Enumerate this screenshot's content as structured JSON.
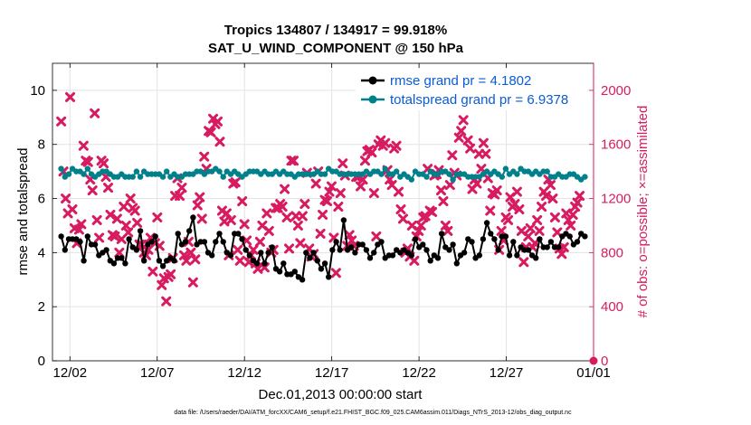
{
  "chart_data": {
    "type": "line",
    "title": "Tropics 134807 / 134917 = 99.918%",
    "subtitle": "SAT_U_WIND_COMPONENT @ 150 hPa",
    "xlabel": "Dec.01,2013 00:00:00 start",
    "ylabel": "rmse and totalspread",
    "ylabel_right": "# of obs: o=possible; ×=assimilated",
    "x_tick_labels": [
      "12/02",
      "12/07",
      "12/12",
      "12/17",
      "12/22",
      "12/27",
      "01/01"
    ],
    "x_tick_days": [
      1,
      6,
      11,
      16,
      21,
      26,
      31
    ],
    "xlim": [
      0,
      31
    ],
    "ylim": [
      0,
      11
    ],
    "y_ticks": [
      0,
      2,
      4,
      6,
      8,
      10
    ],
    "ylim_right": [
      0,
      2200
    ],
    "y_ticks_right": [
      0,
      400,
      800,
      1200,
      1600,
      2000
    ],
    "footer": "data file: /Users/raeder/DAI/ATM_forcXX/CAM6_setup/f.e21.FHIST_BGC.f09_025.CAM6assim.011/Diags_NTrS_2013-12/obs_diag_output.nc",
    "colors": {
      "rmse": "#000000",
      "spread": "#00808b",
      "obs": "#d81b60",
      "grid": "#e3e3e3"
    },
    "series": [
      {
        "name": "rmse grand pr = 4.1802",
        "style": "line-dot",
        "values": [
          4.6,
          4.1,
          4.5,
          4.5,
          4.5,
          4.4,
          3.7,
          4.6,
          4.3,
          4.3,
          3.9,
          4.0,
          4.1,
          3.7,
          3.6,
          3.8,
          3.8,
          3.6,
          4.5,
          4.2,
          4.1,
          4.8,
          3.7,
          4.3,
          4.4,
          4.6,
          3.7,
          3.5,
          3.7,
          3.8,
          3.7,
          4.7,
          4.3,
          4.4,
          4.8,
          5.3,
          4.3,
          4.4,
          4.4,
          4.0,
          3.9,
          4.4,
          4.7,
          4.4,
          4.0,
          3.9,
          4.7,
          4.7,
          4.5,
          4.1,
          3.9,
          3.7,
          3.6,
          4.0,
          3.6,
          4.0,
          4.2,
          3.4,
          3.3,
          3.6,
          3.2,
          3.2,
          3.3,
          3.1,
          3.0,
          4.0,
          3.8,
          4.0,
          3.7,
          3.4,
          3.6,
          3.1,
          4.1,
          4.4,
          4.1,
          5.2,
          4.1,
          4.2,
          4.0,
          4.3,
          4.3,
          4.1,
          3.8,
          4.0,
          4.3,
          4.4,
          3.8,
          3.9,
          3.9,
          4.1,
          4.0,
          4.1,
          4.0,
          3.9,
          4.5,
          4.2,
          4.3,
          4.1,
          3.7,
          3.9,
          3.8,
          4.7,
          4.2,
          4.1,
          4.3,
          3.6,
          3.9,
          4.0,
          4.5,
          4.4,
          3.8,
          3.9,
          4.5,
          5.1,
          4.7,
          4.5,
          4.1,
          4.6,
          4.6,
          3.9,
          4.4,
          3.9,
          4.2,
          4.1,
          4.1,
          3.9,
          3.8,
          4.5,
          4.2,
          4.2,
          4.4,
          4.2,
          4.2,
          4.6,
          4.7,
          4.6,
          4.3,
          4.4,
          4.7,
          4.6
        ]
      },
      {
        "name": "totalspread grand pr = 6.9378",
        "style": "line-dot",
        "values": [
          7.1,
          6.8,
          6.9,
          7.1,
          7.0,
          7.0,
          6.9,
          7.1,
          6.9,
          6.8,
          6.9,
          7.0,
          7.0,
          6.9,
          6.8,
          6.8,
          6.9,
          6.8,
          6.8,
          6.8,
          7.0,
          6.8,
          7.0,
          6.9,
          6.9,
          6.9,
          6.9,
          6.8,
          7.0,
          6.8,
          6.9,
          6.8,
          6.8,
          6.9,
          6.9,
          6.9,
          7.0,
          7.0,
          6.9,
          7.0,
          7.0,
          7.1,
          7.0,
          6.8,
          7.0,
          6.9,
          7.0,
          6.9,
          6.8,
          6.9,
          7.0,
          7.0,
          7.0,
          6.9,
          7.0,
          6.9,
          6.9,
          7.0,
          6.9,
          7.0,
          6.9,
          6.9,
          6.8,
          6.9,
          6.9,
          6.9,
          6.9,
          6.9,
          7.0,
          6.9,
          6.9,
          7.1,
          7.0,
          7.0,
          6.9,
          6.9,
          6.9,
          6.9,
          6.9,
          6.9,
          6.9,
          7.0,
          6.9,
          7.0,
          7.0,
          6.9,
          7.1,
          6.9,
          6.9,
          7.0,
          6.8,
          6.9,
          6.8,
          6.7,
          7.0,
          6.9,
          6.9,
          6.8,
          7.0,
          6.9,
          6.9,
          7.0,
          7.0,
          6.9,
          6.7,
          6.9,
          6.9,
          6.9,
          6.8,
          6.8,
          6.8,
          6.8,
          6.9,
          7.0,
          6.9,
          7.0,
          6.9,
          6.8,
          7.1,
          6.9,
          7.0,
          6.9,
          7.1,
          7.0,
          7.0,
          6.9,
          7.0,
          6.9,
          7.0,
          7.0,
          6.8,
          6.8,
          6.9,
          6.8,
          6.8,
          6.9,
          6.9,
          6.8,
          6.7,
          6.8
        ]
      },
      {
        "name": "# of obs assimilated",
        "style": "markers",
        "axis": "right",
        "values": [
          1770,
          1400,
          1200,
          1090,
          1950,
          1120,
          980,
          870,
          970,
          1010,
          1590,
          1480,
          1470,
          1340,
          1260,
          1830,
          1040,
          910,
          1480,
          1460,
          1360,
          1280,
          1080,
          930,
          920,
          1050,
          800,
          900,
          1140,
          1000,
          950,
          1200,
          1130,
          1110,
          1020,
          860,
          860,
          800,
          780,
          820,
          910,
          660,
          870,
          1060,
          850,
          560,
          610,
          440,
          620,
          640,
          760,
          1220,
          1350,
          1220,
          1280,
          780,
          740,
          880,
          800,
          580,
          750,
          1150,
          1210,
          1050,
          1510,
          1420,
          1700,
          1690,
          1790,
          1750,
          1770,
          1620,
          1110,
          1030,
          1090,
          780,
          1040,
          1310,
          1320,
          820,
          740,
          1180,
          1010,
          890,
          730,
          780,
          820,
          720,
          680,
          880,
          1000,
          690,
          1090,
          960,
          800,
          820,
          1130,
          1130,
          1160,
          1140,
          1270,
          1060,
          830,
          1480,
          1480,
          1070,
          1000,
          870,
          1070,
          1160,
          1390,
          830,
          770,
          790,
          1310,
          1400,
          940,
          1080,
          1190,
          1180,
          1250,
          1290,
          910,
          650,
          1140,
          1240,
          1460,
          1370,
          850,
          930,
          890,
          850,
          1360,
          1360,
          1290,
          1340,
          1480,
          1550,
          1560,
          1540,
          1240,
          920,
          1600,
          1630,
          1590,
          1610,
          1410,
          1340,
          1300,
          1570,
          1590,
          1250,
          1120,
          1050,
          800,
          830,
          770,
          1000,
          740,
          920,
          960,
          1000,
          1060,
          1070,
          1420,
          1110,
          1100,
          1370,
          1380,
          1410,
          1260,
          1180,
          1000,
          960,
          1300,
          1520,
          1390,
          1370,
          1650,
          1700,
          1780,
          1900,
          1630,
          1570,
          1270,
          1340,
          1310,
          1530,
          1420,
          1610,
          1530,
          1350,
          1110,
          1240,
          1230,
          1260,
          820,
          960,
          890,
          1060,
          1040,
          1210,
          1140,
          1160,
          1250,
          1120,
          960,
          730,
          840,
          920,
          980,
          840,
          870,
          1040,
          960,
          1140,
          1250,
          1220,
          1340,
          1300,
          1200,
          1060,
          950,
          830,
          790,
          840,
          1090,
          1040,
          1000,
          1080,
          1140,
          1170,
          1220
        ]
      },
      {
        "name": "# of obs possible (last)",
        "style": "single-marker",
        "axis": "right",
        "values": [
          0
        ]
      }
    ]
  }
}
